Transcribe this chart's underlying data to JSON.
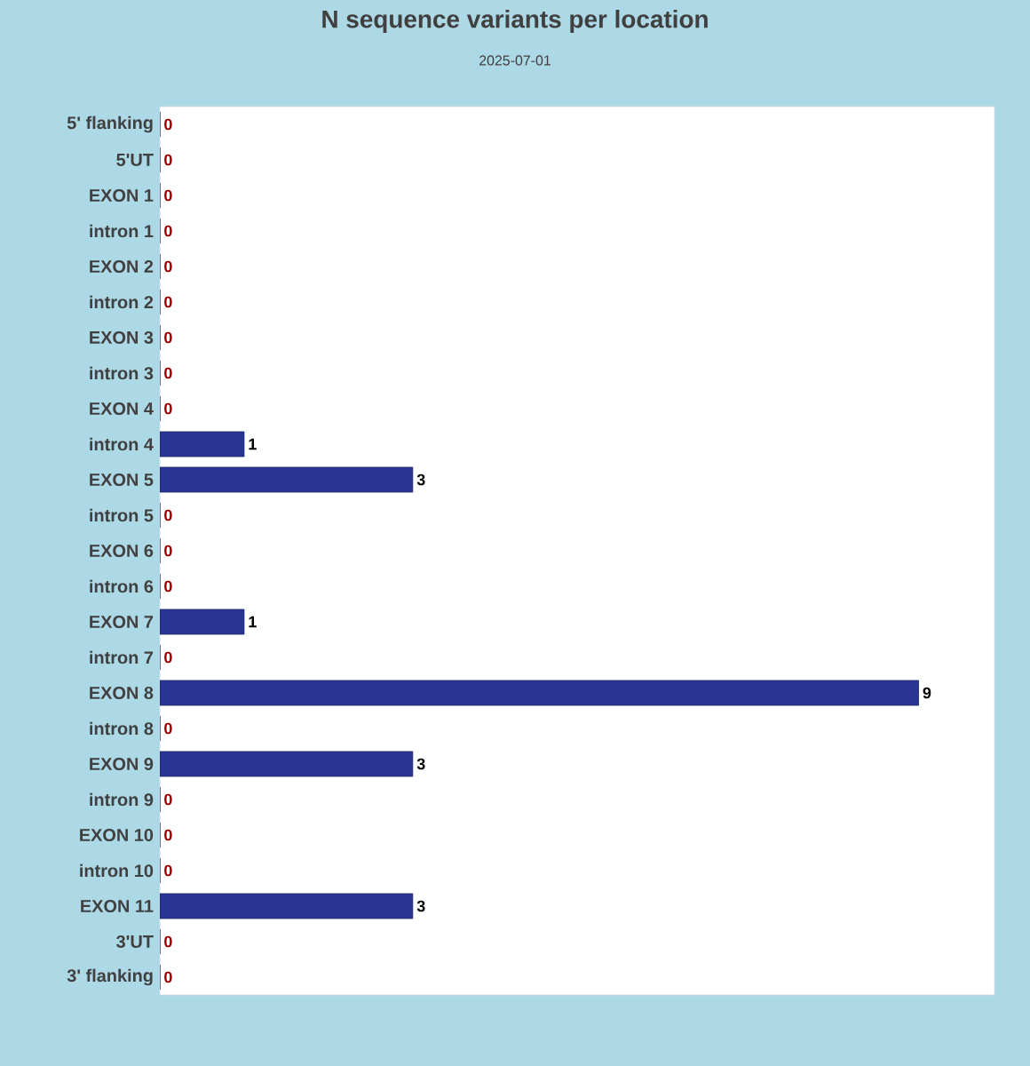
{
  "chart_data": {
    "type": "bar",
    "orientation": "horizontal",
    "title": "N sequence variants per location",
    "subtitle": "2025-07-01",
    "categories": [
      "5' flanking",
      "5'UT",
      "EXON 1",
      "intron 1",
      "EXON 2",
      "intron 2",
      "EXON 3",
      "intron 3",
      "EXON 4",
      "intron 4",
      "EXON 5",
      "intron 5",
      "EXON 6",
      "intron 6",
      "EXON 7",
      "intron 7",
      "EXON 8",
      "intron 8",
      "EXON 9",
      "intron 9",
      "EXON 10",
      "intron 10",
      "EXON 11",
      "3'UT",
      "3' flanking"
    ],
    "values": [
      0,
      0,
      0,
      0,
      0,
      0,
      0,
      0,
      0,
      1,
      3,
      0,
      0,
      0,
      1,
      0,
      9,
      0,
      3,
      0,
      0,
      0,
      3,
      0,
      0
    ],
    "color": "#283593",
    "data_labels": true,
    "tick_labels": "y"
  }
}
